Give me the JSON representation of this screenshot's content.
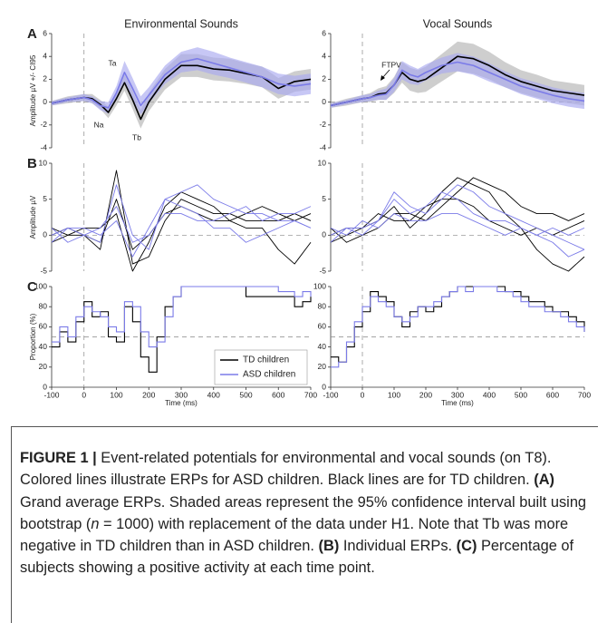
{
  "chart_data": [
    {
      "type": "line",
      "panel": "A",
      "title": "Environmental Sounds",
      "ylabel": "Amplitude µV +/- CI95",
      "x": [
        -100,
        -50,
        0,
        25,
        50,
        75,
        100,
        125,
        150,
        175,
        200,
        250,
        300,
        350,
        400,
        450,
        500,
        550,
        600,
        650,
        700
      ],
      "xlim": [
        -100,
        700
      ],
      "ylim": [
        -4,
        6
      ],
      "yticks": [
        -4,
        -2,
        0,
        2,
        4,
        6
      ],
      "vline": 0,
      "hline": 0,
      "annotations": [
        "Ta",
        "Na",
        "Tb"
      ],
      "series": [
        {
          "color": "#000000",
          "ci_color": "#b3b3b3",
          "values": [
            -0.1,
            0.2,
            0.4,
            0.3,
            -0.2,
            -0.9,
            0.3,
            1.7,
            0.2,
            -1.5,
            0.0,
            2.0,
            3.2,
            3.2,
            2.9,
            2.8,
            2.5,
            2.2,
            1.2,
            1.8,
            2.0
          ],
          "ci": [
            0.2,
            0.3,
            0.3,
            0.4,
            0.4,
            0.5,
            0.6,
            0.7,
            0.8,
            0.8,
            0.8,
            0.9,
            1.0,
            1.0,
            1.0,
            1.0,
            0.9,
            0.9,
            0.9,
            0.9,
            0.9
          ]
        },
        {
          "color": "#7b7be8",
          "ci_color": "#a9a9f0",
          "values": [
            -0.1,
            0.2,
            0.4,
            0.2,
            -0.3,
            -0.5,
            0.8,
            2.6,
            1.2,
            -0.3,
            0.6,
            2.4,
            3.5,
            3.8,
            3.4,
            3.0,
            2.6,
            2.2,
            1.6,
            1.4,
            1.6
          ],
          "ci": [
            0.2,
            0.2,
            0.3,
            0.3,
            0.4,
            0.5,
            0.6,
            1.0,
            0.9,
            0.8,
            0.7,
            0.8,
            0.9,
            1.0,
            1.0,
            0.9,
            0.9,
            0.9,
            0.9,
            0.9,
            0.9
          ]
        }
      ]
    },
    {
      "type": "line",
      "title": "Vocal Sounds",
      "x": [
        -100,
        -50,
        0,
        25,
        50,
        75,
        100,
        125,
        150,
        175,
        200,
        250,
        300,
        350,
        400,
        450,
        500,
        550,
        600,
        650,
        700
      ],
      "xlim": [
        -100,
        700
      ],
      "ylim": [
        -4,
        6
      ],
      "yticks": [
        -4,
        -2,
        0,
        2,
        4,
        6
      ],
      "vline": 0,
      "hline": 0,
      "annotations": [
        "FTPV"
      ],
      "series": [
        {
          "color": "#000000",
          "ci_color": "#b3b3b3",
          "values": [
            -0.3,
            0.0,
            0.3,
            0.4,
            0.7,
            0.8,
            1.5,
            2.6,
            2.0,
            1.8,
            2.0,
            3.0,
            4.0,
            3.8,
            3.2,
            2.4,
            1.8,
            1.4,
            1.0,
            0.8,
            0.6
          ],
          "ci": [
            0.2,
            0.3,
            0.3,
            0.4,
            0.5,
            0.6,
            0.7,
            0.9,
            1.0,
            1.0,
            1.1,
            1.2,
            1.3,
            1.3,
            1.2,
            1.1,
            1.0,
            1.0,
            0.9,
            0.9,
            0.9
          ]
        },
        {
          "color": "#7b7be8",
          "ci_color": "#a9a9f0",
          "values": [
            -0.3,
            0.0,
            0.3,
            0.4,
            0.6,
            0.7,
            1.5,
            2.8,
            2.4,
            2.2,
            2.6,
            3.2,
            3.5,
            3.2,
            2.6,
            2.0,
            1.4,
            1.0,
            0.6,
            0.3,
            0.1
          ],
          "ci": [
            0.2,
            0.2,
            0.3,
            0.3,
            0.4,
            0.5,
            0.6,
            0.8,
            0.8,
            0.7,
            0.7,
            0.7,
            0.8,
            0.8,
            0.8,
            0.7,
            0.7,
            0.7,
            0.7,
            0.7,
            0.7
          ]
        }
      ]
    },
    {
      "type": "line",
      "panel": "B",
      "ylabel": "Amplitude µV",
      "x": [
        -100,
        -50,
        0,
        50,
        100,
        150,
        200,
        250,
        300,
        350,
        400,
        450,
        500,
        550,
        600,
        650,
        700
      ],
      "xlim": [
        -100,
        700
      ],
      "ylim": [
        -5,
        10
      ],
      "yticks": [
        -5,
        0,
        5,
        10
      ],
      "vline": 0,
      "hline": 0,
      "series": [
        {
          "color": "#000000",
          "values": [
            0,
            1,
            0,
            -1,
            5,
            -2,
            0,
            3,
            4,
            3,
            2,
            2,
            1,
            1,
            -2,
            -4,
            -1
          ]
        },
        {
          "color": "#000000",
          "values": [
            -1,
            0,
            0,
            -2,
            9,
            -4,
            -3,
            2,
            5,
            4,
            3,
            3,
            2,
            2,
            2,
            3,
            2
          ]
        },
        {
          "color": "#000000",
          "values": [
            1,
            0,
            1,
            1,
            3,
            -5,
            -1,
            4,
            6,
            5,
            4,
            2,
            3,
            4,
            3,
            2,
            3
          ]
        },
        {
          "color": "#7b7be8",
          "values": [
            0,
            1,
            0,
            -1,
            7,
            0,
            -2,
            5,
            6,
            7,
            5,
            4,
            3,
            3,
            2,
            2,
            1
          ]
        },
        {
          "color": "#7b7be8",
          "values": [
            1,
            -1,
            0,
            1,
            4,
            -1,
            0,
            3,
            3,
            2,
            2,
            3,
            4,
            2,
            3,
            3,
            4
          ]
        },
        {
          "color": "#7b7be8",
          "values": [
            -1,
            1,
            1,
            0,
            2,
            -3,
            1,
            5,
            4,
            3,
            1,
            1,
            -1,
            0,
            1,
            2,
            1
          ]
        }
      ]
    },
    {
      "type": "line",
      "x": [
        -100,
        -50,
        0,
        50,
        100,
        150,
        200,
        250,
        300,
        350,
        400,
        450,
        500,
        550,
        600,
        650,
        700
      ],
      "xlim": [
        -100,
        700
      ],
      "ylim": [
        -5,
        10
      ],
      "yticks": [
        -5,
        0,
        5,
        10
      ],
      "vline": 0,
      "hline": 0,
      "series": [
        {
          "color": "#000000",
          "values": [
            0,
            1,
            1,
            2,
            4,
            1,
            3,
            6,
            8,
            7,
            6,
            3,
            1,
            -2,
            -4,
            -5,
            -3
          ]
        },
        {
          "color": "#000000",
          "values": [
            -1,
            0,
            1,
            3,
            2,
            2,
            4,
            5,
            5,
            4,
            2,
            1,
            0,
            1,
            0,
            1,
            2
          ]
        },
        {
          "color": "#000000",
          "values": [
            1,
            -1,
            0,
            1,
            3,
            3,
            2,
            4,
            6,
            8,
            7,
            6,
            4,
            3,
            3,
            2,
            3
          ]
        },
        {
          "color": "#7b7be8",
          "values": [
            0,
            1,
            1,
            2,
            6,
            4,
            3,
            5,
            7,
            6,
            4,
            3,
            2,
            1,
            0,
            -1,
            -2
          ]
        },
        {
          "color": "#7b7be8",
          "values": [
            1,
            0,
            2,
            1,
            3,
            2,
            2,
            3,
            3,
            2,
            1,
            0,
            1,
            0,
            -1,
            -3,
            -2
          ]
        },
        {
          "color": "#7b7be8",
          "values": [
            -1,
            1,
            0,
            2,
            5,
            3,
            4,
            6,
            5,
            3,
            2,
            2,
            1,
            0,
            1,
            0,
            1
          ]
        }
      ]
    },
    {
      "type": "step",
      "panel": "C",
      "ylabel": "Proportion (%)",
      "xlabel": "Time (ms)",
      "x": [
        -100,
        -75,
        -50,
        -25,
        0,
        25,
        50,
        75,
        100,
        125,
        150,
        175,
        200,
        225,
        250,
        275,
        300,
        325,
        350,
        375,
        400,
        425,
        450,
        475,
        500,
        525,
        550,
        575,
        600,
        625,
        650,
        675,
        700
      ],
      "xlim": [
        -100,
        700
      ],
      "xticks": [
        -100,
        0,
        100,
        200,
        300,
        400,
        500,
        600,
        700
      ],
      "ylim": [
        0,
        100
      ],
      "yticks": [
        0,
        20,
        40,
        60,
        80,
        100
      ],
      "vline": 0,
      "hline": 50,
      "series": [
        {
          "name": "TD children",
          "color": "#000000",
          "values": [
            40,
            55,
            45,
            65,
            85,
            70,
            75,
            50,
            45,
            80,
            65,
            30,
            15,
            50,
            80,
            90,
            100,
            100,
            100,
            100,
            100,
            100,
            100,
            100,
            90,
            90,
            90,
            90,
            90,
            90,
            80,
            85,
            90
          ]
        },
        {
          "name": "ASD children",
          "color": "#7b7be8",
          "values": [
            45,
            60,
            50,
            70,
            80,
            75,
            70,
            60,
            55,
            85,
            80,
            55,
            40,
            45,
            70,
            90,
            100,
            100,
            100,
            100,
            100,
            100,
            100,
            100,
            100,
            100,
            100,
            100,
            95,
            95,
            90,
            95,
            90
          ]
        }
      ]
    },
    {
      "type": "step",
      "xlabel": "Time (ms)",
      "x": [
        -100,
        -75,
        -50,
        -25,
        0,
        25,
        50,
        75,
        100,
        125,
        150,
        175,
        200,
        225,
        250,
        275,
        300,
        325,
        350,
        375,
        400,
        425,
        450,
        475,
        500,
        525,
        550,
        575,
        600,
        625,
        650,
        675,
        700
      ],
      "xlim": [
        -100,
        700
      ],
      "xticks": [
        -100,
        0,
        100,
        200,
        300,
        400,
        500,
        600,
        700
      ],
      "ylim": [
        0,
        100
      ],
      "yticks": [
        0,
        20,
        40,
        60,
        80,
        100
      ],
      "vline": 0,
      "hline": 50,
      "series": [
        {
          "color": "#000000",
          "values": [
            30,
            25,
            40,
            60,
            75,
            95,
            90,
            85,
            70,
            60,
            75,
            80,
            75,
            80,
            90,
            95,
            100,
            100,
            100,
            100,
            100,
            100,
            95,
            95,
            90,
            85,
            85,
            80,
            75,
            75,
            70,
            65,
            55
          ]
        },
        {
          "color": "#7b7be8",
          "values": [
            20,
            25,
            45,
            65,
            80,
            90,
            85,
            80,
            70,
            65,
            70,
            80,
            80,
            85,
            90,
            95,
            100,
            95,
            100,
            100,
            100,
            95,
            95,
            90,
            85,
            80,
            80,
            75,
            75,
            70,
            65,
            60,
            55
          ]
        }
      ]
    }
  ],
  "caption": {
    "segments": [
      {
        "text": "FIGURE 1 |",
        "weight": "bold"
      },
      {
        "text": " Event-related potentials for environmental and vocal sounds (on T8). Colored lines illustrate ERPs for ASD children. Black lines are for TD children. "
      },
      {
        "text": "(A)",
        "weight": "bold"
      },
      {
        "text": " Grand average ERPs. Shaded areas represent the 95% confidence interval built using bootstrap ("
      },
      {
        "text": "n",
        "style": "italic"
      },
      {
        "text": " = 1000) with replacement of the data under H1. Note that Tb was more negative in TD children than in ASD children. "
      },
      {
        "text": "(B)",
        "weight": "bold"
      },
      {
        "text": " Individual ERPs. "
      },
      {
        "text": "(C)",
        "weight": "bold"
      },
      {
        "text": " Percentage of subjects showing a positive activity at each time point."
      }
    ]
  }
}
